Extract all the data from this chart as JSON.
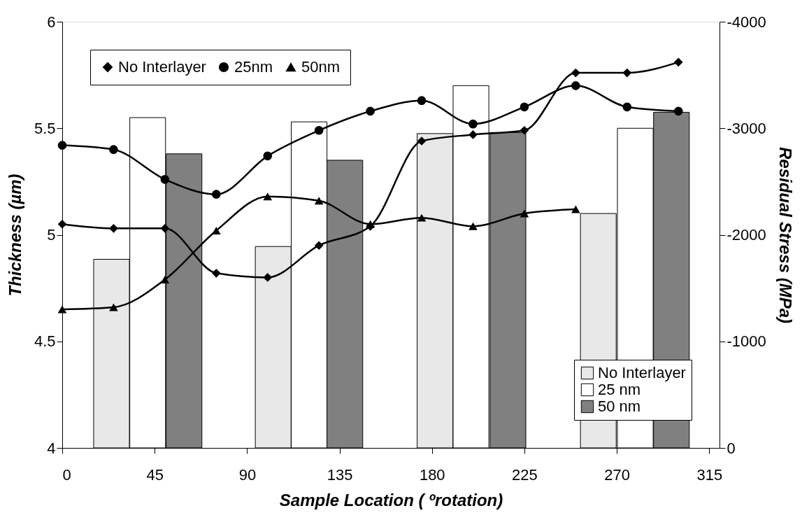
{
  "chart_data": {
    "type": "line",
    "xlabel": "Sample Location ( ºrotation)",
    "ylabel": "Thickness (µm)",
    "y2label": "Residual Stress (MPa)",
    "xlim": [
      0,
      320
    ],
    "xticks": [
      0,
      45,
      90,
      135,
      180,
      225,
      270,
      315
    ],
    "ylim": [
      4,
      6
    ],
    "yticks": [
      4,
      4.5,
      5,
      5.5,
      6
    ],
    "y2lim": [
      0,
      -4000
    ],
    "y2ticks": [
      0,
      -1000,
      -2000,
      -3000,
      -4000
    ],
    "legend": "bottom right",
    "grid": false,
    "series": [
      {
        "type": "bar",
        "axis": "y2",
        "name": "No Interlayer",
        "color": "#e8e8e8",
        "x": [
          24,
          102.7,
          181.5,
          261
        ],
        "values": [
          -1770,
          -1890,
          -2950,
          -2200
        ]
      },
      {
        "type": "bar",
        "axis": "y2",
        "name": "25 nm",
        "color": "#ffffff",
        "x": [
          41.6,
          120.2,
          199,
          279
        ],
        "values": [
          -3100,
          -3060,
          -3400,
          -3000
        ]
      },
      {
        "type": "bar",
        "axis": "y2",
        "name": "50 nm",
        "color": "#808080",
        "x": [
          59.3,
          137.6,
          217,
          296.6
        ],
        "values": [
          -2760,
          -2700,
          -2960,
          -3150
        ]
      },
      {
        "name": "No Interlayer",
        "color": "#000000",
        "marker": "diamond",
        "x": [
          0,
          25,
          50,
          75,
          100,
          125,
          150,
          175,
          200,
          225,
          250,
          275,
          300
        ],
        "values": [
          5.05,
          5.03,
          5.03,
          4.82,
          4.8,
          4.95,
          5.04,
          5.44,
          5.47,
          5.49,
          5.76,
          5.76,
          5.81
        ]
      },
      {
        "name": "25nm",
        "color": "#000000",
        "marker": "circle",
        "x": [
          0,
          25,
          50,
          75,
          100,
          125,
          150,
          175,
          200,
          225,
          250,
          275,
          300
        ],
        "values": [
          5.42,
          5.4,
          5.26,
          5.19,
          5.37,
          5.49,
          5.58,
          5.63,
          5.52,
          5.6,
          5.7,
          5.6,
          5.58
        ]
      },
      {
        "name": "50nm",
        "color": "#000000",
        "marker": "triangle",
        "x": [
          0,
          25,
          50,
          75,
          100,
          125,
          150,
          175,
          200,
          225,
          250
        ],
        "values": [
          4.65,
          4.66,
          4.79,
          5.02,
          5.18,
          5.16,
          5.05,
          5.08,
          5.04,
          5.1,
          5.12
        ]
      }
    ]
  }
}
